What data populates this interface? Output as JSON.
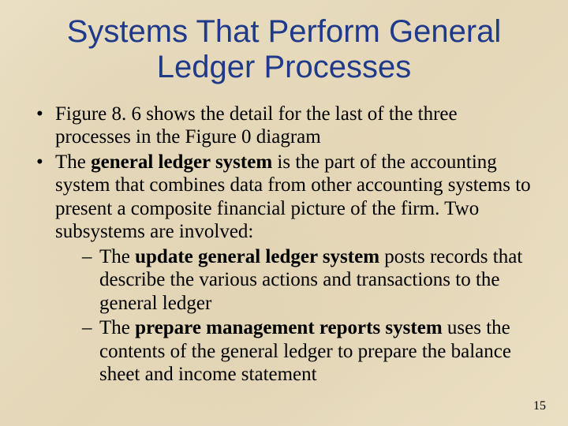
{
  "colors": {
    "title_color": "#1f3a8a",
    "body_text_color": "#000000",
    "background_base": "#e8dcc0"
  },
  "typography": {
    "title_font": "Arial",
    "title_size_pt": 40,
    "title_weight": "normal",
    "body_font": "Times New Roman",
    "body_size_pt": 25,
    "page_number_size_pt": 16
  },
  "title": "Systems That Perform General Ledger Processes",
  "page_number": "15",
  "bullets": [
    {
      "runs": [
        {
          "t": "Figure 8. 6 shows the detail for the last of the three processes in the Figure 0 diagram",
          "b": false
        }
      ]
    },
    {
      "runs": [
        {
          "t": "The ",
          "b": false
        },
        {
          "t": "general ledger system",
          "b": true
        },
        {
          "t": " is the part of the accounting system that combines data from other accounting systems to present a composite financial picture of the firm. Two subsystems are involved:",
          "b": false
        }
      ],
      "sub": [
        {
          "runs": [
            {
              "t": "The ",
              "b": false
            },
            {
              "t": "update general ledger system",
              "b": true
            },
            {
              "t": " posts records that describe the various actions and transactions to the general ledger",
              "b": false
            }
          ]
        },
        {
          "runs": [
            {
              "t": "The ",
              "b": false
            },
            {
              "t": "prepare management reports system",
              "b": true
            },
            {
              "t": " uses the contents of the general ledger to prepare the balance sheet and income statement",
              "b": false
            }
          ]
        }
      ]
    }
  ]
}
